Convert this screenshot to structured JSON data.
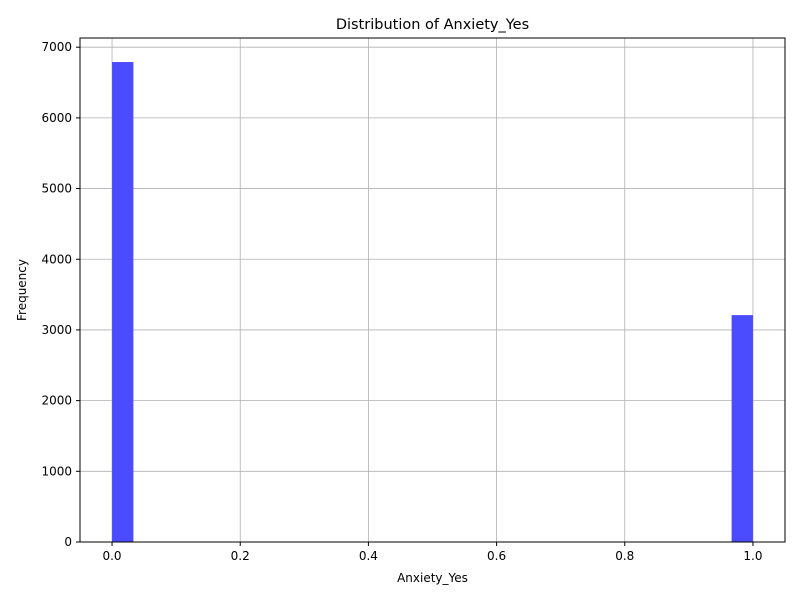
{
  "chart_data": {
    "type": "bar",
    "title": "Distribution of Anxiety_Yes",
    "xlabel": "Anxiety_Yes",
    "ylabel": "Frequency",
    "xlim": [
      -0.05,
      1.05
    ],
    "ylim": [
      0,
      7130
    ],
    "grid": true,
    "bin_width": 0.0333,
    "bars": [
      {
        "x_start": 0.0,
        "x_end": 0.0333,
        "value": 6790
      },
      {
        "x_start": 0.9667,
        "x_end": 1.0,
        "value": 3210
      }
    ],
    "x_ticks": [
      0.0,
      0.2,
      0.4,
      0.6,
      0.8,
      1.0
    ],
    "x_tick_labels": [
      "0.0",
      "0.2",
      "0.4",
      "0.6",
      "0.8",
      "1.0"
    ],
    "y_ticks": [
      0,
      1000,
      2000,
      3000,
      4000,
      5000,
      6000,
      7000
    ],
    "y_tick_labels": [
      "0",
      "1000",
      "2000",
      "3000",
      "4000",
      "5000",
      "6000",
      "7000"
    ],
    "colors": {
      "bar": "#4B4BFF",
      "grid": "#b0b0b0",
      "axis": "#000000"
    }
  }
}
